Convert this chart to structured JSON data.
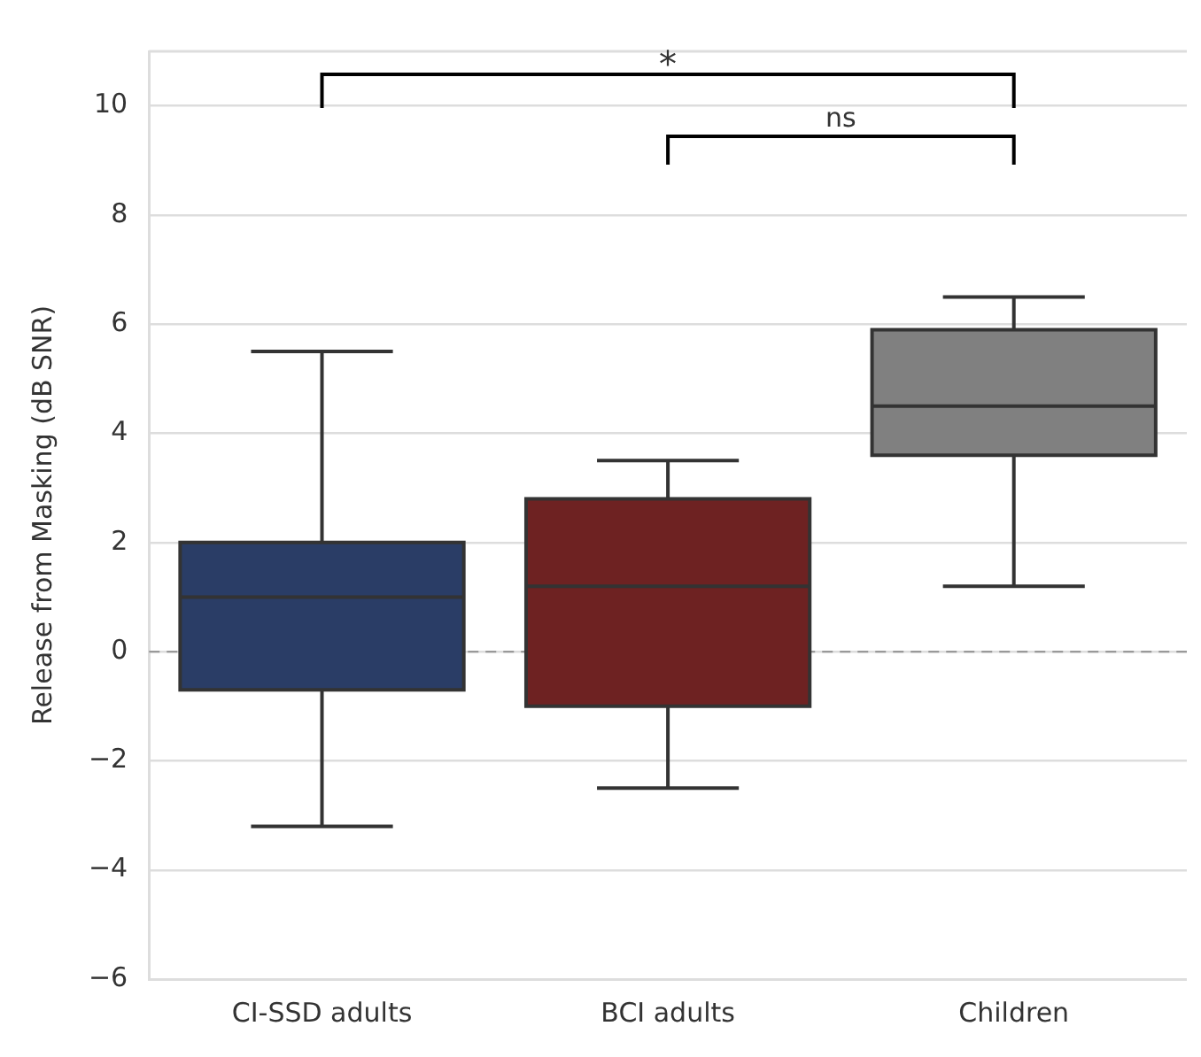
{
  "chart_data": {
    "type": "box",
    "ylabel": "Release from Masking (dB SNR)",
    "categories": [
      "CI-SSD adults",
      "BCI adults",
      "Children"
    ],
    "boxes": [
      {
        "low": -3.2,
        "q1": -0.7,
        "median": 1.0,
        "q3": 2.0,
        "high": 5.5
      },
      {
        "low": -2.5,
        "q1": -1.0,
        "median": 1.2,
        "q3": 2.8,
        "high": 3.5
      },
      {
        "low": 1.2,
        "q1": 3.6,
        "median": 4.5,
        "q3": 5.9,
        "high": 6.5
      }
    ],
    "colors": [
      "#2a3d66",
      "#6e2222",
      "#808080"
    ],
    "ylim": [
      -6,
      11
    ],
    "yticks": [
      -6,
      -4,
      -2,
      0,
      2,
      4,
      6,
      8,
      10
    ],
    "grid": "y",
    "legend": false,
    "ref_lines": [
      {
        "axis": "y",
        "value": 0,
        "color": "#999999",
        "line_style": "dashed"
      }
    ],
    "annotations": [
      "*",
      "ns"
    ]
  }
}
